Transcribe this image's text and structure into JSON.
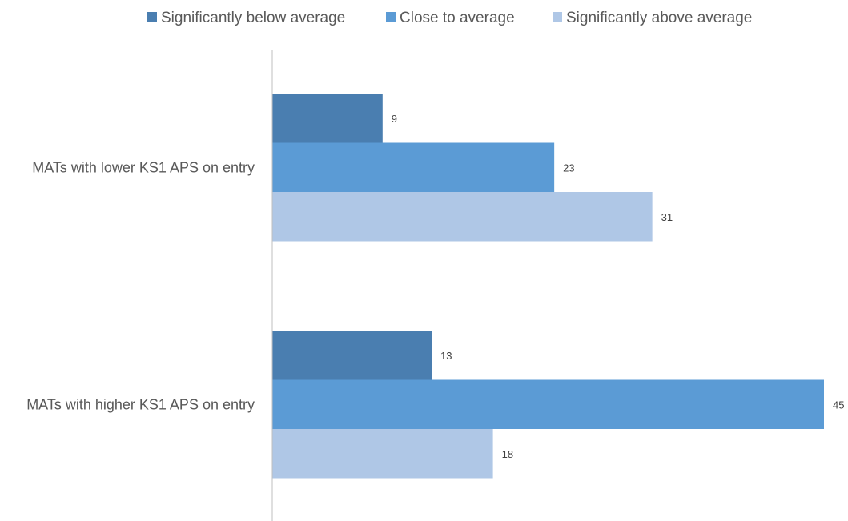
{
  "chart_data": {
    "type": "bar",
    "orientation": "horizontal",
    "title": "",
    "xlabel": "",
    "ylabel": "",
    "categories": [
      "MATs with lower KS1 APS on entry",
      "MATs with higher KS1 APS on entry"
    ],
    "series": [
      {
        "name": "Significantly below average",
        "color": "#4a7eb0",
        "values": [
          9,
          13
        ]
      },
      {
        "name": "Close to average",
        "color": "#5b9bd5",
        "values": [
          23,
          45
        ]
      },
      {
        "name": "Significantly above average",
        "color": "#afc7e6",
        "values": [
          31,
          18
        ]
      }
    ],
    "xlim": [
      0,
      45
    ],
    "grid": false,
    "legend_position": "top",
    "data_labels": true,
    "axis_color": "#bfbfbf"
  }
}
